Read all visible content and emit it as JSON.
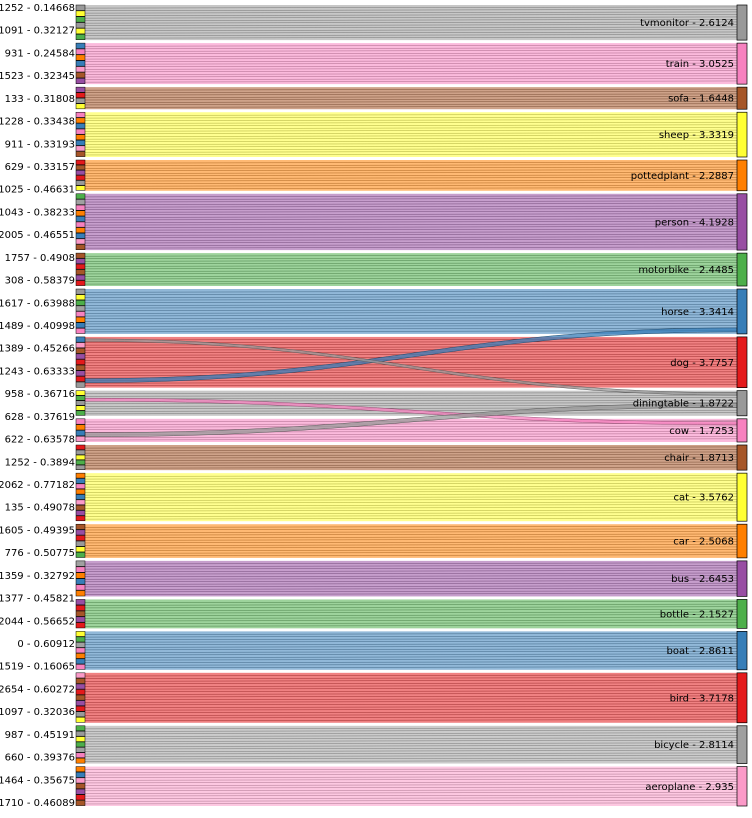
{
  "chart_data": {
    "type": "sankey",
    "title": "",
    "colors": {
      "aeroplane": "#FB9AC8",
      "bicycle": "#A0A0A0",
      "bird": "#E41A1C",
      "boat": "#377EB8",
      "bottle": "#4DAF4A",
      "bus": "#984EA3",
      "car": "#FF7F00",
      "cat": "#FFFF33",
      "chair": "#A65628",
      "cow": "#F781BF",
      "diningtable": "#999999",
      "dog": "#E41A1C",
      "horse": "#377EB8",
      "motorbike": "#4DAF4A",
      "person": "#984EA3",
      "pottedplant": "#FF7F00",
      "sheep": "#FFFF33",
      "sofa": "#A65628",
      "train": "#F781BF",
      "tvmonitor": "#999999"
    },
    "right_nodes": [
      {
        "name": "tvmonitor",
        "value": 2.6124,
        "label": "tvmonitor - 2.6124"
      },
      {
        "name": "train",
        "value": 3.0525,
        "label": "train - 3.0525"
      },
      {
        "name": "sofa",
        "value": 1.6448,
        "label": "sofa - 1.6448"
      },
      {
        "name": "sheep",
        "value": 3.3319,
        "label": "sheep - 3.3319"
      },
      {
        "name": "pottedplant",
        "value": 2.2887,
        "label": "pottedplant - 2.2887"
      },
      {
        "name": "person",
        "value": 4.1928,
        "label": "person - 4.1928"
      },
      {
        "name": "motorbike",
        "value": 2.4485,
        "label": "motorbike - 2.4485"
      },
      {
        "name": "horse",
        "value": 3.3414,
        "label": "horse - 3.3414"
      },
      {
        "name": "dog",
        "value": 3.7757,
        "label": "dog - 3.7757"
      },
      {
        "name": "diningtable",
        "value": 1.8722,
        "label": "diningtable - 1.8722"
      },
      {
        "name": "cow",
        "value": 1.7253,
        "label": "cow - 1.7253"
      },
      {
        "name": "chair",
        "value": 1.8713,
        "label": "chair - 1.8713"
      },
      {
        "name": "cat",
        "value": 3.5762,
        "label": "cat - 3.5762"
      },
      {
        "name": "car",
        "value": 2.5068,
        "label": "car - 2.5068"
      },
      {
        "name": "bus",
        "value": 2.6453,
        "label": "bus - 2.6453"
      },
      {
        "name": "bottle",
        "value": 2.1527,
        "label": "bottle - 2.1527"
      },
      {
        "name": "boat",
        "value": 2.8611,
        "label": "boat - 2.8611"
      },
      {
        "name": "bird",
        "value": 3.7178,
        "label": "bird - 3.7178"
      },
      {
        "name": "bicycle",
        "value": 2.8114,
        "label": "bicycle - 2.8114"
      },
      {
        "name": "aeroplane",
        "value": 2.935,
        "label": "aeroplane - 2.935"
      }
    ],
    "left_labels_legible": [
      {
        "label": "1252 - 0.14668",
        "value": 0.14668
      },
      {
        "label": "1091 - 0.32127",
        "value": 0.32127
      },
      {
        "label": "931 - 0.24584",
        "value": 0.24584
      },
      {
        "label": "1523 - 0.32345",
        "value": 0.32345
      },
      {
        "label": "133 - 0.31808",
        "value": 0.31808
      },
      {
        "label": "1228 - 0.33438",
        "value": 0.33438
      },
      {
        "label": "911 - 0.33193",
        "value": 0.33193
      },
      {
        "label": "629 - 0.33157",
        "value": 0.33157
      },
      {
        "label": "1025 - 0.46631",
        "value": 0.46631
      },
      {
        "label": "1043 - 0.38233",
        "value": 0.38233
      },
      {
        "label": "2005 - 0.46551",
        "value": 0.46551
      },
      {
        "label": "1757 - 0.4908",
        "value": 0.4908
      },
      {
        "label": "308 - 0.58379",
        "value": 0.58379
      },
      {
        "label": "1617 - 0.63988",
        "value": 0.63988
      },
      {
        "label": "1489 - 0.40998",
        "value": 0.40998
      },
      {
        "label": "1389 - 0.45266",
        "value": 0.45266
      },
      {
        "label": "1243 - 0.63333",
        "value": 0.63333
      },
      {
        "label": "958 - 0.36716",
        "value": 0.36716
      },
      {
        "label": "628 - 0.37619",
        "value": 0.37619
      },
      {
        "label": "622 - 0.63578",
        "value": 0.63578
      },
      {
        "label": "1252 - 0.3894",
        "value": 0.3894
      },
      {
        "label": "2062 - 0.77182",
        "value": 0.77182
      },
      {
        "label": "135 - 0.49078",
        "value": 0.49078
      },
      {
        "label": "1605 - 0.49395",
        "value": 0.49395
      },
      {
        "label": "776 - 0.50775",
        "value": 0.50775
      },
      {
        "label": "1359 - 0.32792",
        "value": 0.32792
      },
      {
        "label": "1377 - 0.45821",
        "value": 0.45821
      },
      {
        "label": "2044 - 0.56652",
        "value": 0.56652
      },
      {
        "label": "0 - 0.60912",
        "value": 0.60912
      },
      {
        "label": "1519 - 0.16065",
        "value": 0.16065
      },
      {
        "label": "2654 - 0.60272",
        "value": 0.60272
      },
      {
        "label": "1097 - 0.32036",
        "value": 0.32036
      },
      {
        "label": "987 - 0.45191",
        "value": 0.45191
      },
      {
        "label": "660 - 0.39376",
        "value": 0.39376
      },
      {
        "label": "1464 - 0.35675",
        "value": 0.35675
      },
      {
        "label": "1710 - 0.46089",
        "value": 0.46089
      }
    ],
    "flows_crossing": [
      {
        "from_group": "dog",
        "to": "horse"
      },
      {
        "from_group": "dog",
        "to": "diningtable"
      },
      {
        "from_group": "diningtable",
        "to": "cow"
      },
      {
        "from_group": "cow",
        "to": "diningtable"
      }
    ]
  }
}
